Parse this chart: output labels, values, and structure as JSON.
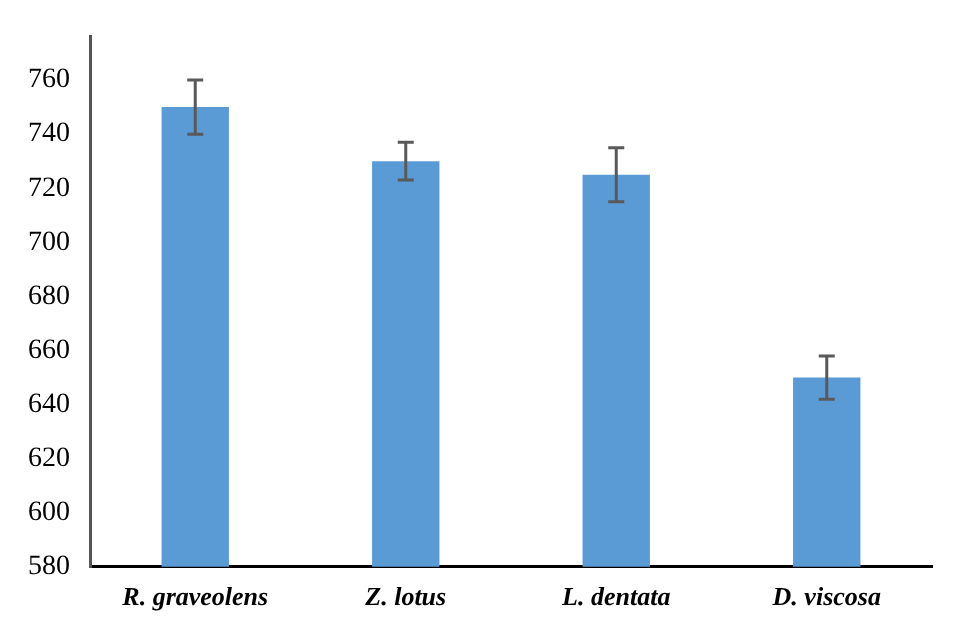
{
  "chart_data": {
    "type": "bar",
    "categories": [
      "R. graveolens",
      "Z. lotus",
      "L. dentata",
      "D. viscosa"
    ],
    "values": [
      750,
      730,
      725,
      650
    ],
    "errors": [
      10,
      7,
      10,
      8
    ],
    "color": "#5b9bd5",
    "ylim": [
      580,
      776
    ],
    "yticks": [
      580,
      600,
      620,
      640,
      660,
      680,
      700,
      720,
      740,
      760
    ],
    "grid": false,
    "legend": false
  }
}
